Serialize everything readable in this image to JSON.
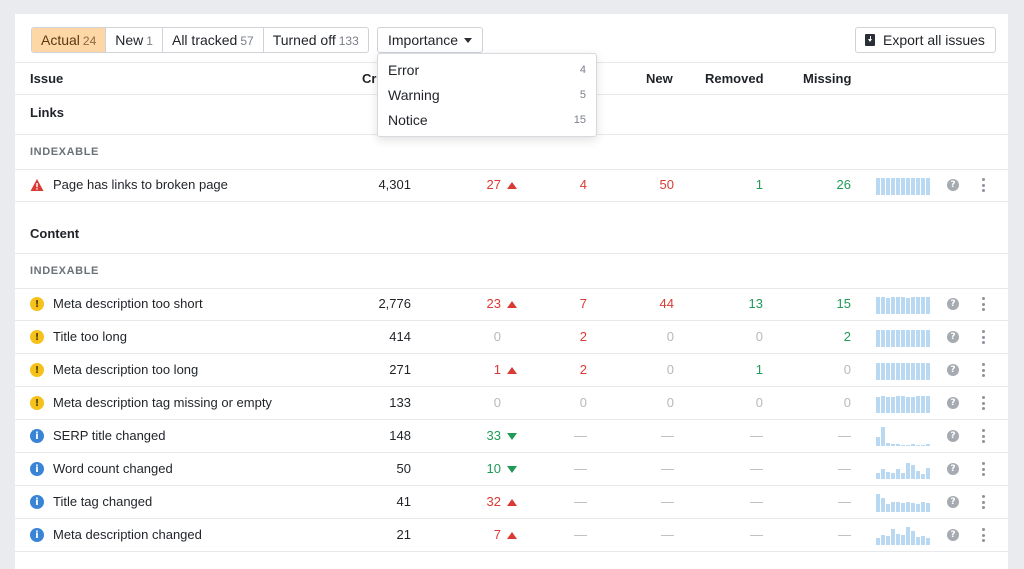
{
  "tabs": [
    {
      "label": "Actual",
      "count": "24",
      "active": true
    },
    {
      "label": "New",
      "count": "1",
      "active": false
    },
    {
      "label": "All tracked",
      "count": "57",
      "active": false
    },
    {
      "label": "Turned off",
      "count": "133",
      "active": false
    }
  ],
  "importance_label": "Importance",
  "export_label": "Export all issues",
  "columns": {
    "issue": "Issue",
    "crawled": "Cr",
    "new": "New",
    "removed": "Removed",
    "missing": "Missing"
  },
  "importance_menu": [
    {
      "label": "Error",
      "count": "4"
    },
    {
      "label": "Warning",
      "count": "5"
    },
    {
      "label": "Notice",
      "count": "15"
    }
  ],
  "sections": [
    {
      "title": "Links",
      "subgroup": "INDEXABLE"
    },
    {
      "title": "Content",
      "subgroup": "INDEXABLE"
    }
  ],
  "rows": [
    {
      "name": "Page has links to broken page",
      "severity": "error",
      "crawled": "4,301",
      "change": "27",
      "change_dir": "up",
      "added": "4",
      "new": "50",
      "removed": "1",
      "missing": "26",
      "spark": [
        0.9,
        0.9,
        0.9,
        0.9,
        0.9,
        0.9,
        0.9,
        0.9,
        0.9,
        0.9,
        0.9
      ]
    },
    {
      "name": "Meta description too short",
      "severity": "warning",
      "crawled": "2,776",
      "change": "23",
      "change_dir": "up",
      "added": "7",
      "new": "44",
      "removed": "13",
      "missing": "15",
      "spark": [
        0.9,
        0.9,
        0.85,
        0.9,
        0.9,
        0.9,
        0.85,
        0.9,
        0.9,
        0.9,
        0.9
      ]
    },
    {
      "name": "Title too long",
      "severity": "warning",
      "crawled": "414",
      "change": "0",
      "change_dir": "",
      "added": "2",
      "new": "0",
      "removed": "0",
      "missing": "2",
      "spark": [
        0.9,
        0.9,
        0.9,
        0.9,
        0.9,
        0.9,
        0.9,
        0.9,
        0.9,
        0.9,
        0.9
      ]
    },
    {
      "name": "Meta description too long",
      "severity": "warning",
      "crawled": "271",
      "change": "1",
      "change_dir": "up",
      "added": "2",
      "new": "0",
      "removed": "1",
      "missing": "0",
      "spark": [
        0.9,
        0.9,
        0.9,
        0.9,
        0.9,
        0.9,
        0.9,
        0.9,
        0.9,
        0.9,
        0.9
      ]
    },
    {
      "name": "Meta description tag missing or empty",
      "severity": "warning",
      "crawled": "133",
      "change": "0",
      "change_dir": "",
      "added": "0",
      "new": "0",
      "removed": "0",
      "missing": "0",
      "spark": [
        0.85,
        0.9,
        0.85,
        0.85,
        0.9,
        0.9,
        0.85,
        0.85,
        0.9,
        0.9,
        0.9
      ]
    },
    {
      "name": "SERP title changed",
      "severity": "notice",
      "crawled": "148",
      "change": "33",
      "change_dir": "down",
      "added": "—",
      "new": "—",
      "removed": "—",
      "missing": "—",
      "spark": [
        0.45,
        1.0,
        0.15,
        0.1,
        0.1,
        0.05,
        0.05,
        0.1,
        0.05,
        0.05,
        0.1
      ]
    },
    {
      "name": "Word count changed",
      "severity": "notice",
      "crawled": "50",
      "change": "10",
      "change_dir": "down",
      "added": "—",
      "new": "—",
      "removed": "—",
      "missing": "—",
      "spark": [
        0.3,
        0.55,
        0.35,
        0.3,
        0.5,
        0.3,
        0.85,
        0.75,
        0.4,
        0.25,
        0.6
      ]
    },
    {
      "name": "Title tag changed",
      "severity": "notice",
      "crawled": "41",
      "change": "32",
      "change_dir": "up",
      "added": "—",
      "new": "—",
      "removed": "—",
      "missing": "—",
      "spark": [
        0.95,
        0.75,
        0.4,
        0.55,
        0.5,
        0.45,
        0.5,
        0.45,
        0.4,
        0.55,
        0.45
      ]
    },
    {
      "name": "Meta description changed",
      "severity": "notice",
      "crawled": "21",
      "change": "7",
      "change_dir": "up",
      "added": "—",
      "new": "—",
      "removed": "—",
      "missing": "—",
      "spark": [
        0.35,
        0.5,
        0.45,
        0.85,
        0.6,
        0.5,
        0.95,
        0.75,
        0.4,
        0.45,
        0.35
      ]
    }
  ],
  "colors": {
    "accent_tab": "#fdd7a6",
    "error": "#d93a33",
    "positive": "#1f9a57",
    "warning_icon": "#f5c21b",
    "notice_icon": "#3a84d6",
    "spark": "#b9d8f2"
  }
}
